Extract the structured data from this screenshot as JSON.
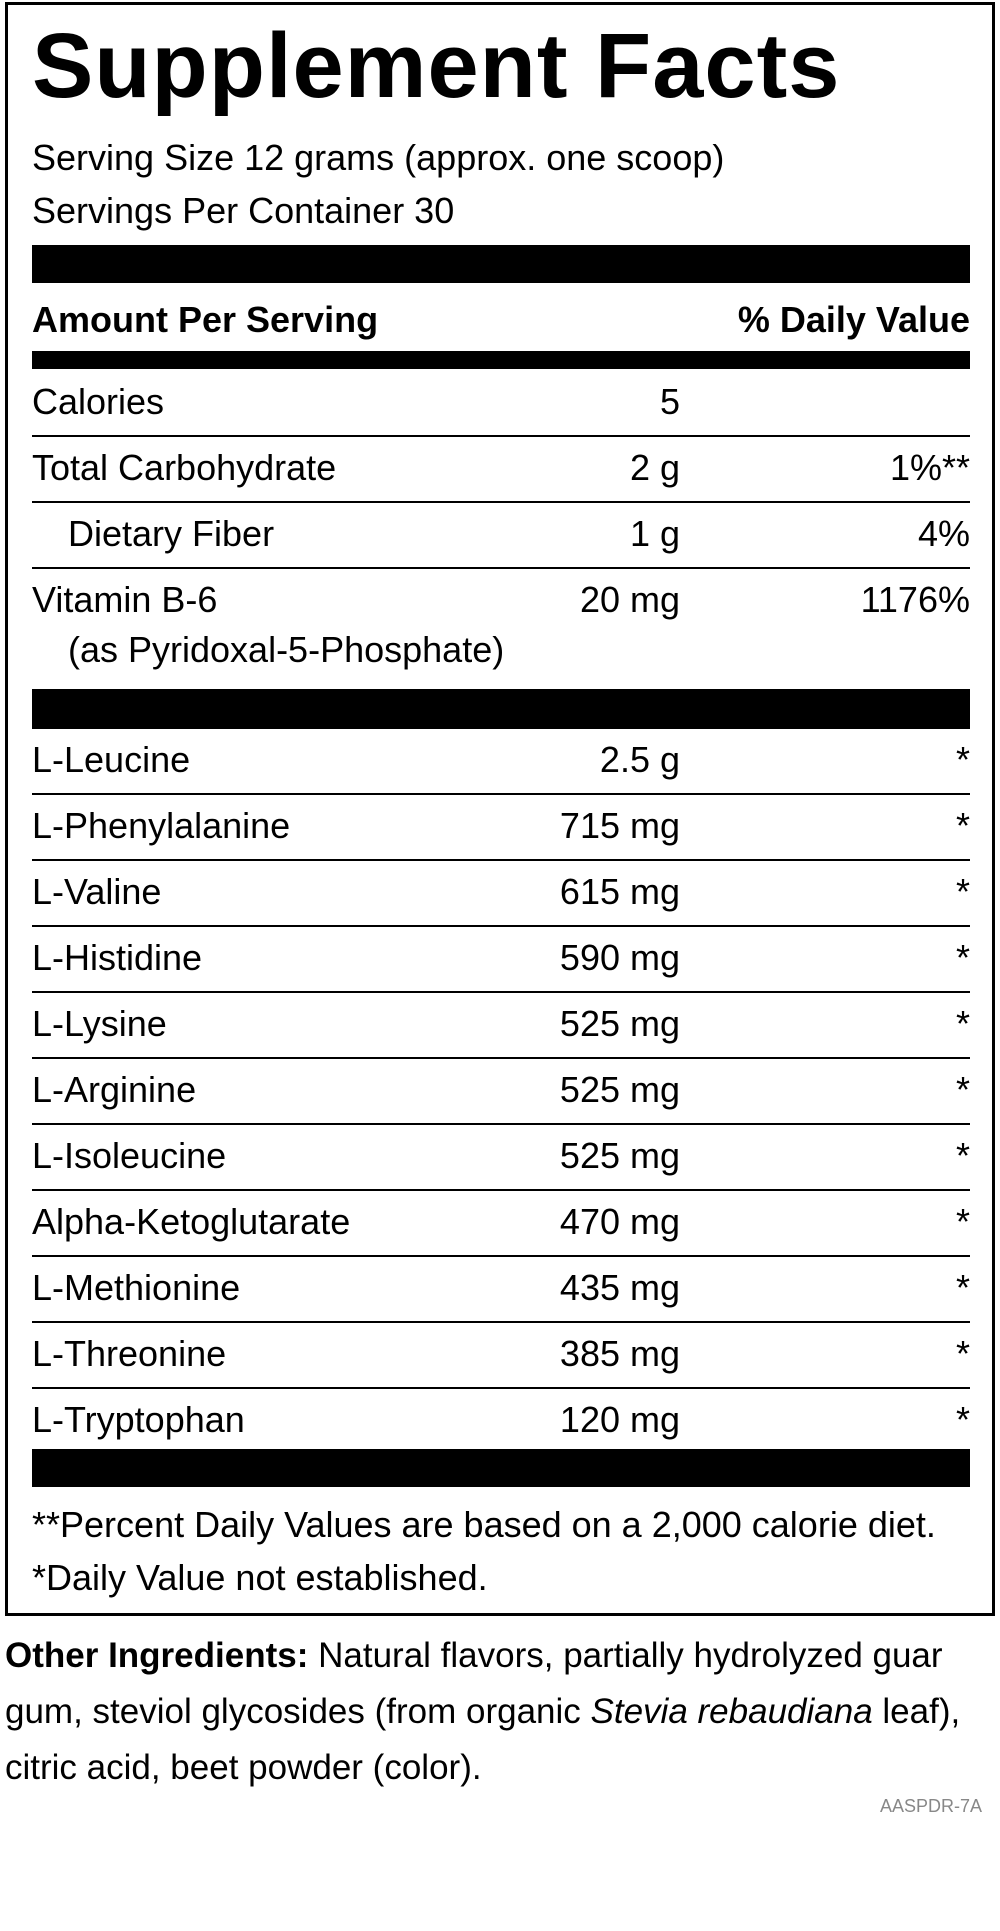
{
  "title": "Supplement Facts",
  "serving_size": "Serving Size 12 grams (approx. one scoop)",
  "servings_per_container": "Servings Per Container 30",
  "header": {
    "amount": "Amount Per Serving",
    "daily_value": "% Daily Value"
  },
  "nutrients": [
    {
      "name": "Calories",
      "amount": "5"
    },
    {
      "name": "Total Carbohydrate",
      "amount": "2 g",
      "dv": "1%**"
    },
    {
      "name": "Dietary Fiber",
      "amount": "1 g",
      "dv": "4%",
      "indent": true
    },
    {
      "name": "Vitamin B-6",
      "sub": "(as Pyridoxal-5-Phosphate)",
      "amount": "20 mg",
      "dv": "1176%"
    }
  ],
  "ingredients": [
    {
      "name": "L-Leucine",
      "amount": "2.5 g",
      "dv": "*"
    },
    {
      "name": "L-Phenylalanine",
      "amount": "715 mg",
      "dv": "*"
    },
    {
      "name": "L-Valine",
      "amount": "615 mg",
      "dv": "*"
    },
    {
      "name": "L-Histidine",
      "amount": "590 mg",
      "dv": "*"
    },
    {
      "name": "L-Lysine",
      "amount": "525 mg",
      "dv": "*"
    },
    {
      "name": "L-Arginine",
      "amount": "525 mg",
      "dv": "*"
    },
    {
      "name": "L-Isoleucine",
      "amount": "525 mg",
      "dv": "*"
    },
    {
      "name": "Alpha-Ketoglutarate",
      "amount": "470 mg",
      "dv": "*"
    },
    {
      "name": "L-Methionine",
      "amount": "435 mg",
      "dv": "*"
    },
    {
      "name": "L-Threonine",
      "amount": "385 mg",
      "dv": "*"
    },
    {
      "name": "L-Tryptophan",
      "amount": "120 mg",
      "dv": "*"
    }
  ],
  "footnotes": [
    "**Percent Daily Values are based on a 2,000 calorie diet.",
    "*Daily Value not established."
  ],
  "other_ingredients": {
    "label": "Other Ingredients:",
    "text_before": "Natural flavors, partially hydrolyzed guar gum, steviol glycosides (from organic",
    "italic": "Stevia rebaudiana",
    "text_after": "leaf), citric acid, beet powder (color)."
  },
  "code": "AASPDR-7A"
}
